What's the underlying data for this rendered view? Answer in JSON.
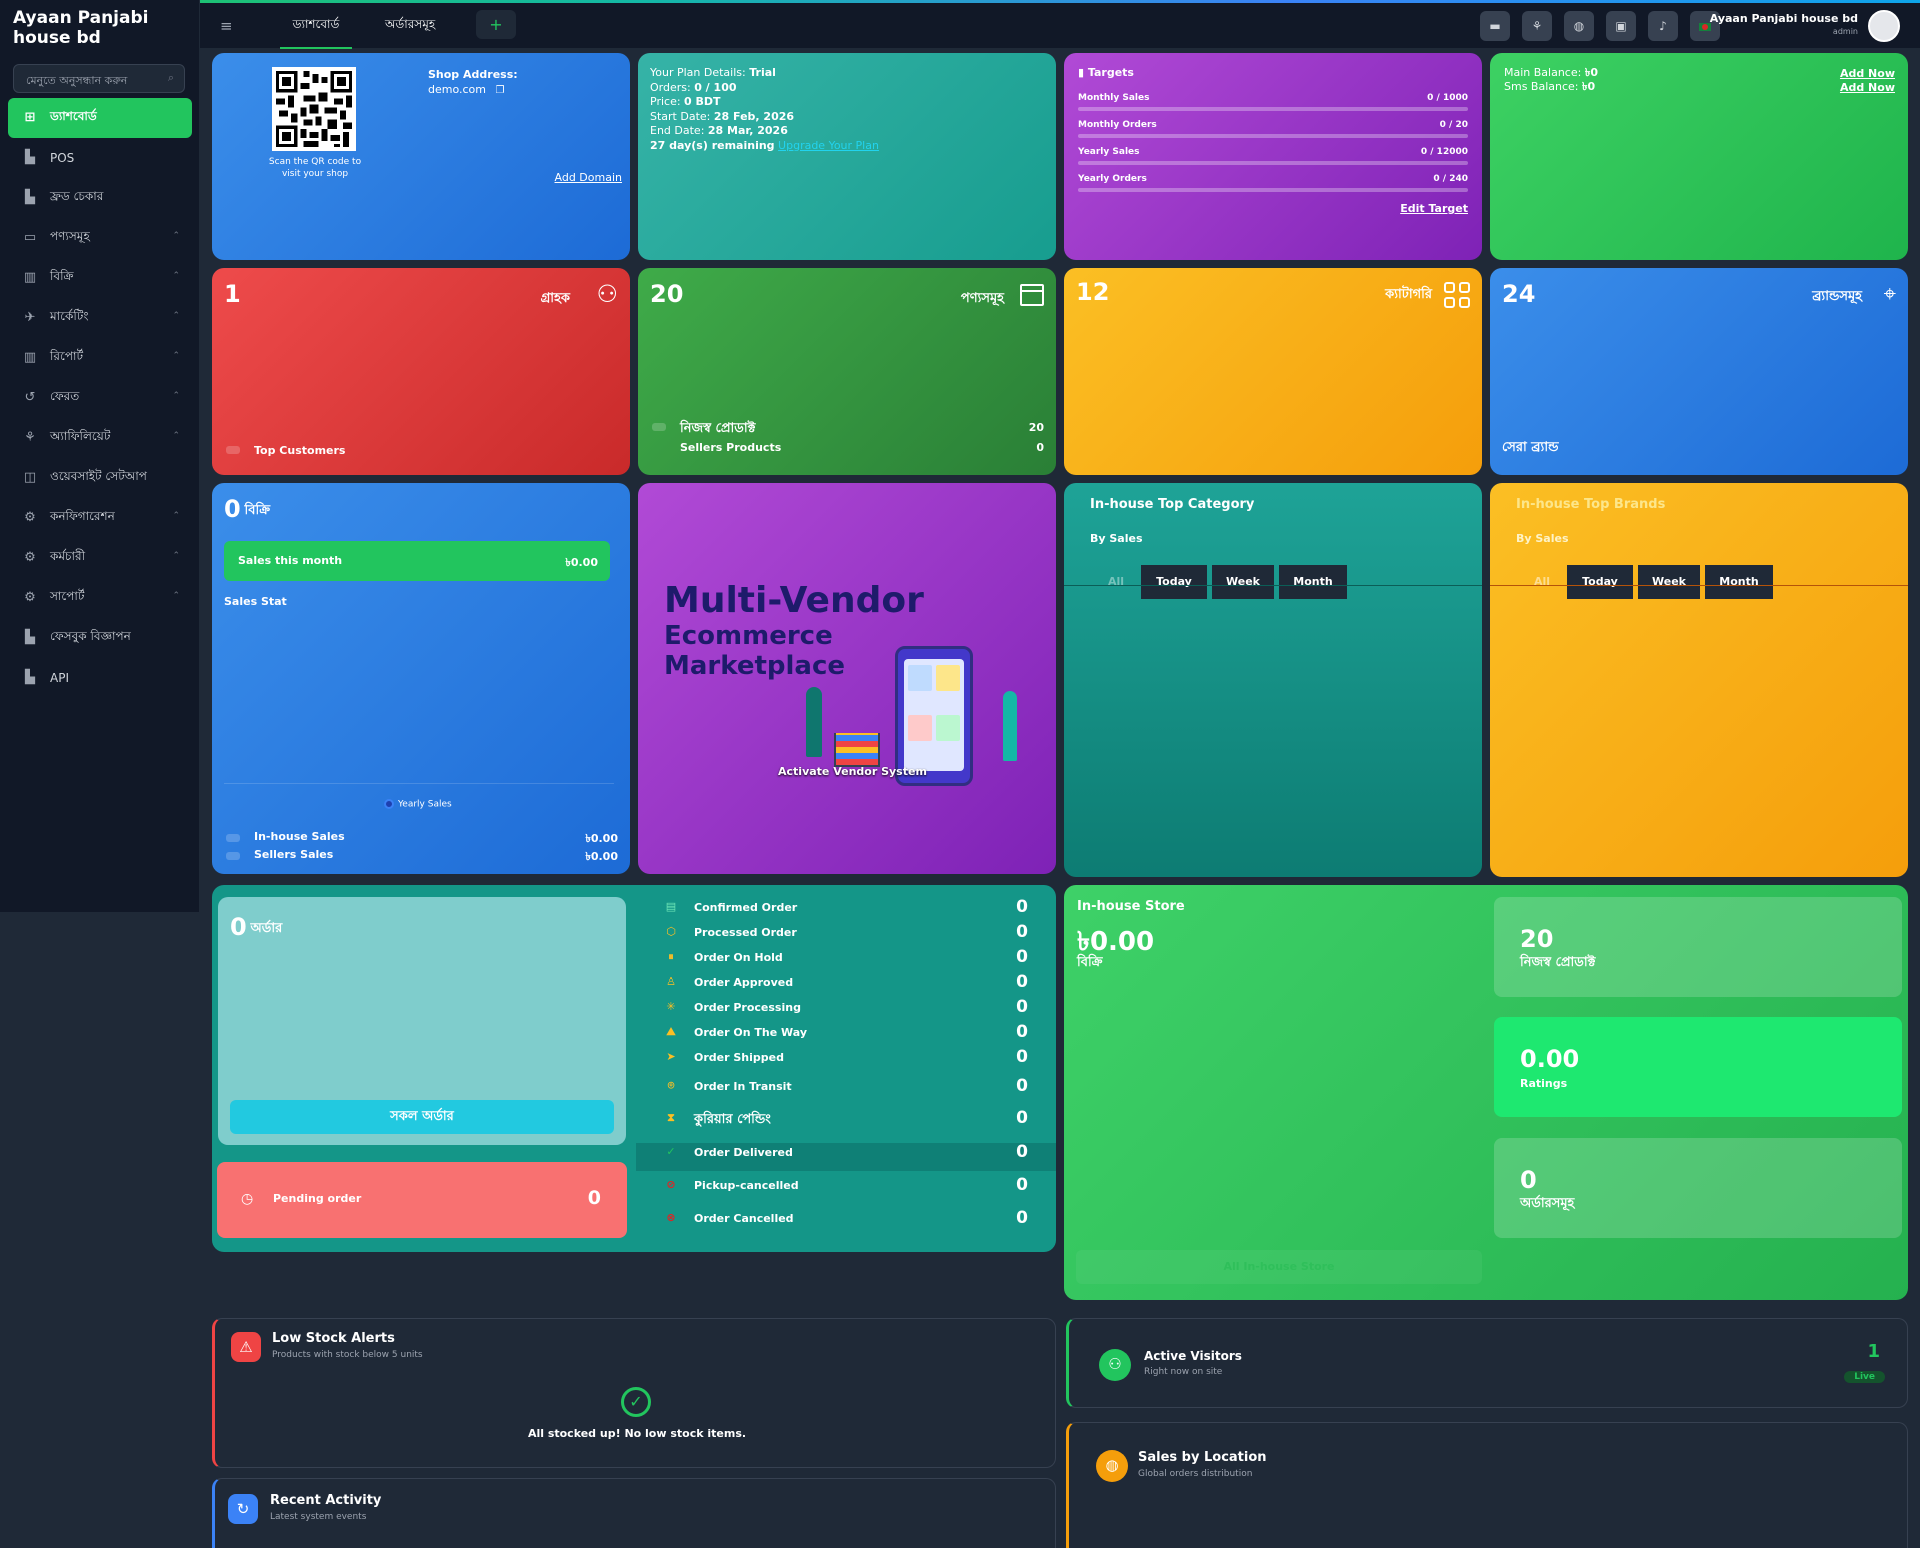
{
  "brand": "Ayaan Panjabi house bd",
  "search_placeholder": "মেনুতে অনুসন্ধান করুন",
  "menu": [
    {
      "icon": "grid-icon",
      "label": "ড্যাশবোর্ড",
      "active": true,
      "chevron": false
    },
    {
      "icon": "pos-icon",
      "label": "POS",
      "chevron": false
    },
    {
      "icon": "fraud-icon",
      "label": "ফ্রড চেকার",
      "chevron": false
    },
    {
      "icon": "products-icon",
      "label": "পণ্যসমূহ",
      "chevron": true
    },
    {
      "icon": "sales-icon",
      "label": "বিক্রি",
      "chevron": true
    },
    {
      "icon": "marketing-icon",
      "label": "মার্কেটিং",
      "chevron": true
    },
    {
      "icon": "report-icon",
      "label": "রিপোর্ট",
      "chevron": true
    },
    {
      "icon": "return-icon",
      "label": "ফেরত",
      "chevron": true
    },
    {
      "icon": "affiliate-icon",
      "label": "অ্যাফিলিয়েট",
      "chevron": true
    },
    {
      "icon": "website-icon",
      "label": "ওয়েবসাইট সেটআপ",
      "chevron": false
    },
    {
      "icon": "config-icon",
      "label": "কনফিগারেশন",
      "chevron": true
    },
    {
      "icon": "staff-icon",
      "label": "কর্মচারী",
      "chevron": true
    },
    {
      "icon": "support-icon",
      "label": "সাপোর্ট",
      "chevron": true
    },
    {
      "icon": "facebook-ad-icon",
      "label": "ফেসবুক বিজ্ঞাপন",
      "chevron": false
    },
    {
      "icon": "api-icon",
      "label": "API",
      "chevron": false
    }
  ],
  "topbar": {
    "tabs": [
      "ড্যাশবোর্ড",
      "অর্ডারসমূহ"
    ],
    "add_label": "+",
    "user_name": "Ayaan Panjabi house bd",
    "user_role": "admin"
  },
  "shop": {
    "address_label": "Shop Address:",
    "address": "demo.com",
    "qr_caption": "Scan the QR code to visit your shop",
    "add_domain": "Add Domain"
  },
  "plan": {
    "line1_label": "Your Plan Details:",
    "line1_value": "Trial",
    "orders_label": "Orders:",
    "orders_value": "0 / 100",
    "price_label": "Price:",
    "price_value": "0 BDT",
    "start_label": "Start Date:",
    "start_value": "28 Feb, 2026",
    "end_label": "End Date:",
    "end_value": "28 Mar, 2026",
    "remaining": "27 day(s) remaining",
    "upgrade": "Upgrade Your Plan"
  },
  "targets": {
    "title": "Targets",
    "rows": [
      {
        "label": "Monthly Sales",
        "value": "0 / 1000",
        "progress": 0
      },
      {
        "label": "Monthly Orders",
        "value": "0 / 20",
        "progress": 0
      },
      {
        "label": "Yearly Sales",
        "value": "0 / 12000",
        "progress": 0
      },
      {
        "label": "Yearly Orders",
        "value": "0 / 240",
        "progress": 0
      }
    ],
    "edit": "Edit Target"
  },
  "balance": {
    "main_label": "Main Balance:",
    "main_value": "৳0",
    "sms_label": "Sms Balance:",
    "sms_value": "৳0",
    "add_now_1": "Add Now",
    "add_now_2": "Add Now"
  },
  "customers": {
    "count": "1",
    "label": "গ্রাহক",
    "footer": "Top Customers"
  },
  "products": {
    "count": "20",
    "label": "পণ্যসমূহ",
    "own_label": "নিজস্ব প্রোডাক্ট",
    "own_value": "20",
    "sellers_label": "Sellers Products",
    "sellers_value": "0"
  },
  "categories": {
    "count": "12",
    "label": "ক্যাটাগরি"
  },
  "brands": {
    "count": "24",
    "label": "ব্র্যান্ডসমূহ",
    "footer": "সেরা ব্র্যান্ড"
  },
  "sales": {
    "count": "0",
    "label": "বিক্রি",
    "month_label": "Sales this month",
    "month_value": "৳0.00",
    "stat_title": "Sales Stat",
    "legend": "Yearly Sales",
    "inhouse_label": "In-house Sales",
    "inhouse_value": "৳0.00",
    "sellers_label": "Sellers Sales",
    "sellers_value": "৳0.00"
  },
  "promo": {
    "line1": "Multi-Vendor",
    "line2": "Ecommerce",
    "line3": "Marketplace",
    "button": "Activate Vendor System"
  },
  "top_category": {
    "title": "In-house Top Category",
    "subtitle": "By Sales",
    "filters": [
      "All",
      "Today",
      "Week",
      "Month"
    ]
  },
  "top_brands": {
    "title": "In-house Top Brands",
    "subtitle": "By Sales",
    "filters": [
      "All",
      "Today",
      "Week",
      "Month"
    ]
  },
  "orders": {
    "count": "0",
    "label": "অর্ডার",
    "all_button": "সকল অর্ডার",
    "pending_label": "Pending order",
    "pending_value": "0",
    "statuses": [
      {
        "icon": "check-doc-icon",
        "label": "Confirmed Order",
        "value": "0"
      },
      {
        "icon": "box-icon",
        "label": "Processed Order",
        "value": "0"
      },
      {
        "icon": "pause-icon",
        "label": "Order On Hold",
        "value": "0"
      },
      {
        "icon": "approved-icon",
        "label": "Order Approved",
        "value": "0"
      },
      {
        "icon": "spinner-icon",
        "label": "Order Processing",
        "value": "0"
      },
      {
        "icon": "road-icon",
        "label": "Order On The Way",
        "value": "0"
      },
      {
        "icon": "send-icon",
        "label": "Order Shipped",
        "value": "0"
      },
      {
        "icon": "location-icon",
        "label": "Order In Transit",
        "value": "0"
      },
      {
        "icon": "hourglass-icon",
        "label": "কুরিয়ার পেন্ডিং",
        "value": "0"
      },
      {
        "icon": "check-circle-icon",
        "label": "Order Delivered",
        "value": "0"
      },
      {
        "icon": "ban-icon",
        "label": "Pickup-cancelled",
        "value": "0"
      },
      {
        "icon": "x-circle-icon",
        "label": "Order Cancelled",
        "value": "0"
      }
    ]
  },
  "store": {
    "title": "In-house Store",
    "amount": "৳0.00",
    "amount_label": "বিক্রি",
    "products_value": "20",
    "products_label": "নিজস্ব প্রোডাক্ট",
    "rating_value": "0.00",
    "rating_label": "Ratings",
    "orders_value": "0",
    "orders_label": "অর্ডারসমূহ",
    "footer_button": "All In-house Store"
  },
  "low_stock": {
    "title": "Low Stock Alerts",
    "subtitle": "Products with stock below 5 units",
    "message": "All stocked up! No low stock items."
  },
  "visitors": {
    "title": "Active Visitors",
    "subtitle": "Right now on site",
    "count": "1",
    "badge": "Live"
  },
  "activity": {
    "title": "Recent Activity",
    "subtitle": "Latest system events"
  },
  "location": {
    "title": "Sales by Location",
    "subtitle": "Global orders distribution"
  }
}
